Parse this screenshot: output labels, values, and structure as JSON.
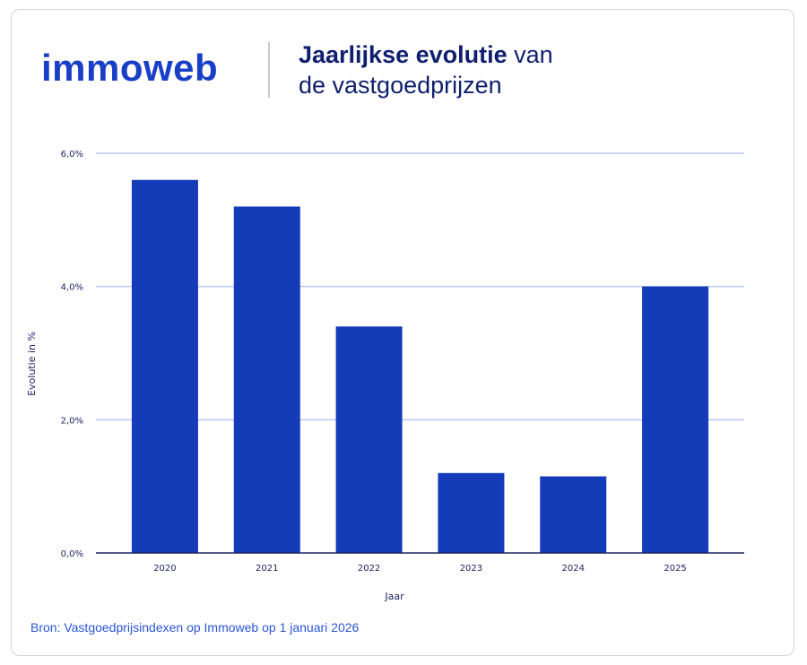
{
  "brand": {
    "logo_text": "immoweb",
    "color": "#1a3fc7"
  },
  "title": {
    "bold": "Jaarlijkse evolutie",
    "rest_line1": " van",
    "line2": "de vastgoedprijzen"
  },
  "source": "Bron: Vastgoedprijsindexen op Immoweb op 1 januari 2026",
  "chart_data": {
    "type": "bar",
    "title": "Jaarlijkse evolutie van de vastgoedprijzen",
    "xlabel": "Jaar",
    "ylabel": "Evolutie in %",
    "categories": [
      "2020",
      "2021",
      "2022",
      "2023",
      "2024",
      "2025"
    ],
    "values": [
      5.6,
      5.2,
      3.4,
      1.2,
      1.15,
      4.0
    ],
    "ylim": [
      0,
      6
    ],
    "yticks": [
      0,
      2,
      4,
      6
    ],
    "ytick_labels": [
      "0,0%",
      "2,0%",
      "4,0%",
      "6,0%"
    ],
    "grid": true,
    "bar_color": "#143bb8",
    "grid_color": "#b9c9f0"
  }
}
